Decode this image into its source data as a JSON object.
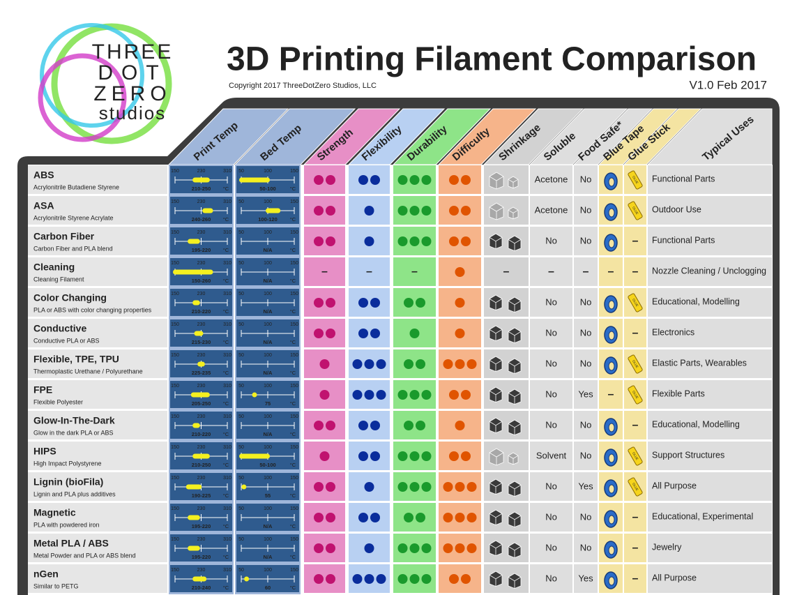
{
  "header": {
    "logo": [
      "THREE",
      "DOT",
      "ZERO",
      "studios"
    ],
    "title": "3D Printing Filament Comparison",
    "copyright": "Copyright 2017 ThreeDotZero Studios, LLC",
    "version": "V1.0 Feb 2017"
  },
  "table": {
    "columns": [
      "Print Temp",
      "Bed Temp",
      "Strength",
      "Flexibility",
      "Durability",
      "Difficulty",
      "Shrinkage",
      "Soluble",
      "Food Safe*",
      "Blue Tape",
      "Glue Stick",
      "Typical Uses"
    ],
    "print_scale": [
      150,
      230,
      310
    ],
    "bed_scale": [
      50,
      100,
      150
    ],
    "unit": "°C",
    "glue_label": "GLUE",
    "rows": [
      {
        "name": "ABS",
        "description": "Acrylonitrile Butadiene Styrene",
        "print_temp": {
          "min": 210,
          "max": 250,
          "label": "210-250"
        },
        "bed_temp": {
          "min": 50,
          "max": 100,
          "label": "50-100"
        },
        "strength": 2,
        "flexibility": 2,
        "durability": 3,
        "difficulty": 2,
        "shrinkage_color": "#a8a8a8",
        "soluble": "Acetone",
        "food_safe": "No",
        "blue_tape": true,
        "glue_stick": true,
        "uses": "Functional Parts"
      },
      {
        "name": "ASA",
        "description": "Acrylonitrile Styrene Acrylate",
        "print_temp": {
          "min": 240,
          "max": 260,
          "label": "240-260"
        },
        "bed_temp": {
          "min": 100,
          "max": 120,
          "label": "100-120"
        },
        "strength": 2,
        "flexibility": 1,
        "durability": 3,
        "difficulty": 2,
        "shrinkage_color": "#a8a8a8",
        "soluble": "Acetone",
        "food_safe": "No",
        "blue_tape": true,
        "glue_stick": true,
        "uses": "Outdoor Use"
      },
      {
        "name": "Carbon Fiber",
        "description": "Carbon Fiber and PLA blend",
        "print_temp": {
          "min": 195,
          "max": 220,
          "label": "195-220"
        },
        "bed_temp": "N/A",
        "strength": 2,
        "flexibility": 1,
        "durability": 3,
        "difficulty": 2,
        "shrinkage_color": "#3a3a3a",
        "soluble": "No",
        "food_safe": "No",
        "blue_tape": true,
        "glue_stick": "–",
        "uses": "Functional Parts"
      },
      {
        "name": "Cleaning",
        "description": "Cleaning Filament",
        "print_temp": {
          "min": 150,
          "max": 260,
          "label": "150-260"
        },
        "bed_temp": "N/A",
        "strength": "–",
        "flexibility": "–",
        "durability": "–",
        "difficulty": 1,
        "shrinkage": "–",
        "soluble": "–",
        "food_safe": "–",
        "blue_tape": "–",
        "glue_stick": "–",
        "uses": "Nozzle Cleaning / Unclogging"
      },
      {
        "name": "Color Changing",
        "description": "PLA or ABS with color changing properties",
        "print_temp": {
          "min": 210,
          "max": 220,
          "label": "210-220"
        },
        "bed_temp": "N/A",
        "strength": 2,
        "flexibility": 2,
        "durability": 2,
        "difficulty": 1,
        "shrinkage_color": "#3a3a3a",
        "soluble": "No",
        "food_safe": "No",
        "blue_tape": true,
        "glue_stick": true,
        "uses": "Educational, Modelling"
      },
      {
        "name": "Conductive",
        "description": "Conductive PLA or ABS",
        "print_temp": {
          "min": 215,
          "max": 230,
          "label": "215-230"
        },
        "bed_temp": "N/A",
        "strength": 2,
        "flexibility": 2,
        "durability": 1,
        "difficulty": 1,
        "shrinkage_color": "#3a3a3a",
        "soluble": "No",
        "food_safe": "No",
        "blue_tape": true,
        "glue_stick": "–",
        "uses": "Electronics"
      },
      {
        "name": "Flexible, TPE, TPU",
        "description": "Thermoplastic Urethane / Polyurethane",
        "print_temp": {
          "min": 225,
          "max": 235,
          "label": "225-235"
        },
        "bed_temp": "N/A",
        "strength": 1,
        "flexibility": 3,
        "durability": 2,
        "difficulty": 3,
        "shrinkage_color": "#3a3a3a",
        "soluble": "No",
        "food_safe": "No",
        "blue_tape": true,
        "glue_stick": true,
        "uses": "Elastic Parts, Wearables"
      },
      {
        "name": "FPE",
        "description": "Flexible Polyester",
        "print_temp": {
          "min": 205,
          "max": 250,
          "label": "205-250"
        },
        "bed_temp": 75,
        "strength": 1,
        "flexibility": 3,
        "durability": 3,
        "difficulty": 2,
        "shrinkage_color": "#3a3a3a",
        "soluble": "No",
        "food_safe": "Yes",
        "blue_tape": "–",
        "glue_stick": true,
        "uses": "Flexible Parts"
      },
      {
        "name": "Glow-In-The-Dark",
        "description": "Glow in the dark PLA or ABS",
        "print_temp": {
          "min": 210,
          "max": 220,
          "label": "210-220"
        },
        "bed_temp": "N/A",
        "strength": 2,
        "flexibility": 2,
        "durability": 2,
        "difficulty": 1,
        "shrinkage_color": "#3a3a3a",
        "soluble": "No",
        "food_safe": "No",
        "blue_tape": true,
        "glue_stick": "–",
        "uses": "Educational, Modelling"
      },
      {
        "name": "HIPS",
        "description": "High Impact Polystyrene",
        "print_temp": {
          "min": 210,
          "max": 250,
          "label": "210-250"
        },
        "bed_temp": {
          "min": 50,
          "max": 100,
          "label": "50-100"
        },
        "strength": 1,
        "flexibility": 2,
        "durability": 3,
        "difficulty": 2,
        "shrinkage_color": "#a8a8a8",
        "soluble": "Solvent",
        "food_safe": "No",
        "blue_tape": true,
        "glue_stick": true,
        "uses": "Support Structures"
      },
      {
        "name": "Lignin (bioFila)",
        "description": "Lignin and PLA plus additives",
        "print_temp": {
          "min": 190,
          "max": 225,
          "label": "190-225"
        },
        "bed_temp": 55,
        "strength": 2,
        "flexibility": 1,
        "durability": 3,
        "difficulty": 3,
        "shrinkage_color": "#3a3a3a",
        "soluble": "No",
        "food_safe": "Yes",
        "blue_tape": true,
        "glue_stick": true,
        "uses": "All Purpose"
      },
      {
        "name": "Magnetic",
        "description": "PLA with powdered iron",
        "print_temp": {
          "min": 195,
          "max": 220,
          "label": "195-220"
        },
        "bed_temp": "N/A",
        "strength": 2,
        "flexibility": 2,
        "durability": 2,
        "difficulty": 3,
        "shrinkage_color": "#3a3a3a",
        "soluble": "No",
        "food_safe": "No",
        "blue_tape": true,
        "glue_stick": "–",
        "uses": "Educational, Experimental"
      },
      {
        "name": "Metal PLA / ABS",
        "description": "Metal Powder and PLA or ABS blend",
        "print_temp": {
          "min": 195,
          "max": 220,
          "label": "195-220"
        },
        "bed_temp": "N/A",
        "strength": 2,
        "flexibility": 1,
        "durability": 3,
        "difficulty": 3,
        "shrinkage_color": "#3a3a3a",
        "soluble": "No",
        "food_safe": "No",
        "blue_tape": true,
        "glue_stick": "–",
        "uses": "Jewelry"
      },
      {
        "name": "nGen",
        "description": "Similar to PETG",
        "print_temp": {
          "min": 210,
          "max": 240,
          "label": "210-240"
        },
        "bed_temp": 60,
        "strength": 2,
        "flexibility": 3,
        "durability": 3,
        "difficulty": 2,
        "shrinkage_color": "#3a3a3a",
        "soluble": "No",
        "food_safe": "Yes",
        "blue_tape": true,
        "glue_stick": "–",
        "uses": "All Purpose"
      }
    ]
  }
}
